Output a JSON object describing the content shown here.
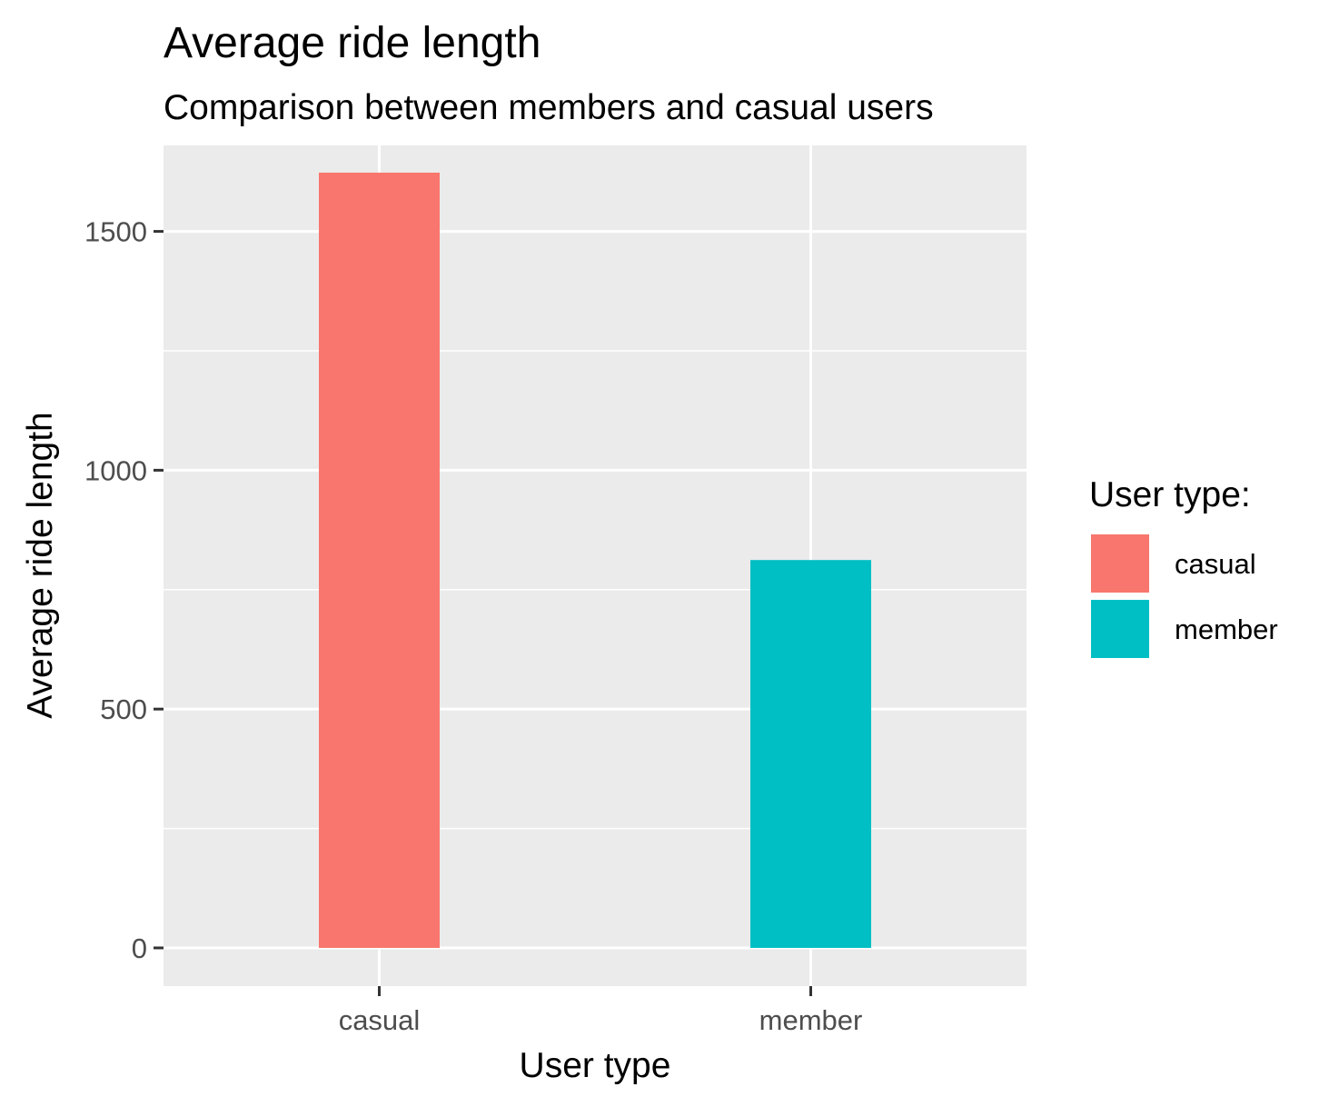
{
  "chart_data": {
    "type": "bar",
    "title": "Average ride length",
    "subtitle": "Comparison between members and casual users",
    "xlabel": "User type",
    "ylabel": "Average ride length",
    "categories": [
      "casual",
      "member"
    ],
    "values": [
      1623,
      812
    ],
    "ylim": [
      -80,
      1680
    ],
    "yticks": [
      0,
      500,
      1000,
      1500
    ],
    "yticks_minor": [
      250,
      750,
      1250
    ],
    "grid": true,
    "panel_background": "#ebebeb",
    "colors": [
      "#F8766D",
      "#00BFC4"
    ],
    "legend": {
      "title": "User type:",
      "position": "right",
      "entries": [
        "casual",
        "member"
      ]
    }
  }
}
